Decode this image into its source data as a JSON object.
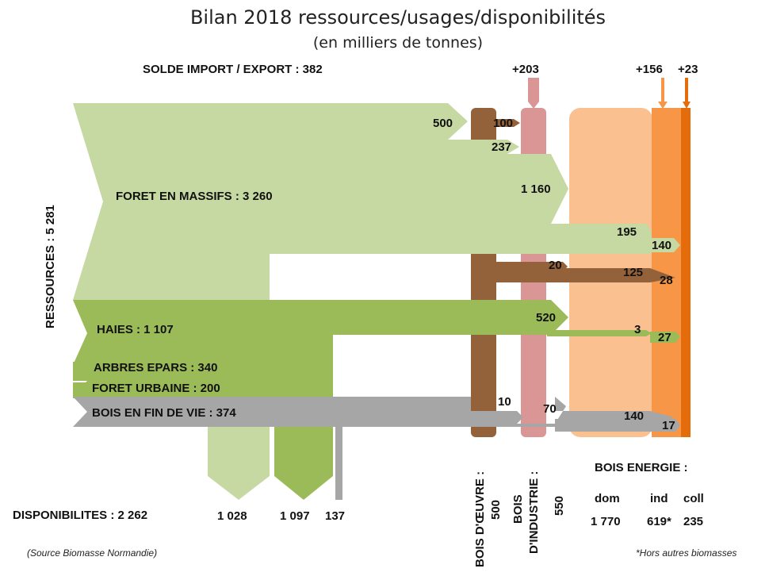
{
  "title": "Bilan 2018 ressources/usages/disponibilités",
  "subtitle": "(en milliers de tonnes)",
  "solde": "SOLDE IMPORT / EXPORT : 382",
  "imports": {
    "industrie": "+203",
    "energie_ind": "+156",
    "energie_coll": "+23"
  },
  "ressources_label": "RESSOURCES : 5 281",
  "sources": {
    "foret_massifs": "FORET EN MASSIFS : 3 260",
    "haies": "HAIES : 1 107",
    "arbres_epars": "ARBRES EPARS : 340",
    "foret_urbaine": "FORET URBAINE : 200",
    "bois_fin_vie": "BOIS EN FIN DE VIE : 374"
  },
  "flows": {
    "f500": "500",
    "f100": "100",
    "f237": "237",
    "f1160": "1 160",
    "f195": "195",
    "f140a": "140",
    "f20": "20",
    "f125": "125",
    "f28": "28",
    "f520": "520",
    "f3": "3",
    "f27": "27",
    "f10": "10",
    "f70": "70",
    "f140b": "140",
    "f17": "17"
  },
  "disponibilites": {
    "label": "DISPONIBILITES : 2 262",
    "v1": "1 028",
    "v2": "1 097",
    "v3": "137"
  },
  "usages": {
    "oeuvre_l1": "BOIS D'ŒUVRE :",
    "oeuvre_l2": "500",
    "industrie_l1": "BOIS",
    "industrie_l2": "D'INDUSTRIE :",
    "industrie_l3": "550",
    "energie_title": "BOIS ENERGIE :",
    "dom_label": "dom",
    "ind_label": "ind",
    "coll_label": "coll",
    "dom_value": "1 770",
    "ind_value": "619*",
    "coll_value": "235"
  },
  "footnotes": {
    "source": "(Source Biomasse Normandie)",
    "note": "*Hors autres biomasses"
  },
  "colors": {
    "foret": "#c6d9a2",
    "haies": "#9bbb59",
    "fin_vie": "#a6a6a6",
    "oeuvre": "#94623a",
    "industrie": "#d99694",
    "energie_dom": "#fac090",
    "energie_ind": "#f79646",
    "energie_coll": "#e46c0a"
  }
}
